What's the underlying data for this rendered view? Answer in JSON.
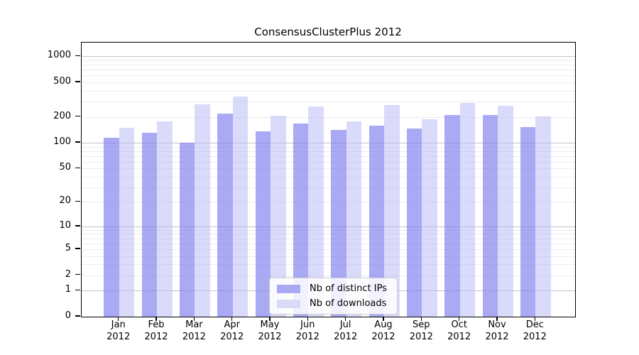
{
  "title": "ConsensusClusterPlus 2012",
  "legend": {
    "items": [
      {
        "label": "Nb of distinct IPs",
        "color": "#a9a9f3"
      },
      {
        "label": "Nb of downloads",
        "color": "#dadaf9"
      }
    ]
  },
  "chart_data": {
    "type": "bar",
    "title": "ConsensusClusterPlus 2012",
    "categories": [
      "Jan 2012",
      "Feb 2012",
      "Mar 2012",
      "Apr 2012",
      "May 2012",
      "Jun 2012",
      "Jul 2012",
      "Aug 2012",
      "Sep 2012",
      "Oct 2012",
      "Nov 2012",
      "Dec 2012"
    ],
    "months": [
      "Jan",
      "Feb",
      "Mar",
      "Apr",
      "May",
      "Jun",
      "Jul",
      "Aug",
      "Sep",
      "Oct",
      "Nov",
      "Dec"
    ],
    "year": "2012",
    "series": [
      {
        "name": "Nb of distinct IPs",
        "color": "#a9a9f3",
        "values": [
          114,
          130,
          100,
          220,
          135,
          168,
          142,
          159,
          147,
          210,
          209,
          151
        ]
      },
      {
        "name": "Nb of downloads",
        "color": "#dadaf9",
        "values": [
          150,
          177,
          280,
          343,
          205,
          262,
          177,
          275,
          186,
          289,
          267,
          204
        ]
      }
    ],
    "xlabel": "",
    "ylabel": "",
    "yscale": "log1p",
    "yticks": [
      0,
      1,
      2,
      5,
      10,
      20,
      50,
      100,
      200,
      500,
      1000
    ],
    "ylim": [
      0,
      1400
    ],
    "grid": "both",
    "grid_major_color": "#c4c4c4",
    "grid_minor_color": "#ececec",
    "legend_position": "inside-lower-center"
  }
}
